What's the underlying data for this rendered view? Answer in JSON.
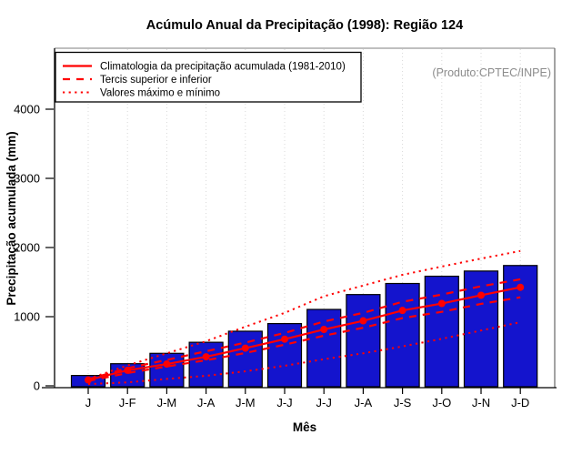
{
  "title": "Acúmulo Anual da Precipitação (1998): Região 124",
  "annotation": "(Produto:CPTEC/INPE)",
  "colors": {
    "bar_fill": "#1414cd",
    "bar_border": "#000000",
    "line_red": "#ff0000",
    "grid": "#d8d8d8",
    "box_top": "#999999",
    "box_right": "#666666",
    "axis": "#000000",
    "annotation": "#8c8c8c",
    "background": "#ffffff"
  },
  "legend": {
    "items": [
      {
        "label": "Climatologia da precipitação acumulada (1981-2010)",
        "style": "solid"
      },
      {
        "label": "Tercis superior e inferior",
        "style": "dashed"
      },
      {
        "label": "Valores máximo e mínimo",
        "style": "dotted"
      }
    ]
  },
  "chart_data": {
    "type": "bar",
    "title": "Acúmulo Anual da Precipitação (1998): Região 124",
    "xlabel": "Mês",
    "ylabel": "Precipitação acumulada (mm)",
    "categories": [
      "J",
      "J-F",
      "J-M",
      "J-A",
      "J-M",
      "J-J",
      "J-J",
      "J-A",
      "J-S",
      "J-O",
      "J-N",
      "J-D"
    ],
    "bar_series": {
      "name": "1998",
      "values": [
        150,
        320,
        470,
        630,
        790,
        900,
        1105,
        1320,
        1480,
        1585,
        1660,
        1740
      ]
    },
    "series": [
      {
        "name": "Climatologia da precipitação acumulada (1981-2010)",
        "style": "solid",
        "values": [
          85,
          225,
          315,
          420,
          545,
          675,
          815,
          940,
          1090,
          1190,
          1310,
          1425
        ]
      },
      {
        "name": "Tercil superior",
        "style": "dashed",
        "values": [
          95,
          255,
          375,
          500,
          625,
          765,
          930,
          1055,
          1215,
          1320,
          1440,
          1540
        ]
      },
      {
        "name": "Tercil inferior",
        "style": "dashed",
        "values": [
          70,
          185,
          280,
          370,
          475,
          595,
          725,
          840,
          980,
          1070,
          1185,
          1280
        ]
      },
      {
        "name": "Valor máximo",
        "style": "dotted",
        "values": [
          100,
          295,
          470,
          645,
          855,
          1055,
          1295,
          1450,
          1605,
          1725,
          1840,
          1950
        ]
      },
      {
        "name": "Valor mínimo",
        "style": "dotted",
        "values": [
          25,
          50,
          100,
          145,
          210,
          290,
          385,
          470,
          570,
          680,
          800,
          920
        ]
      }
    ],
    "yticks": [
      0,
      1000,
      2000,
      3000,
      4000
    ],
    "ylim": [
      0,
      4880
    ],
    "grid": "vertical-dotted",
    "legend_position": "top-left"
  }
}
